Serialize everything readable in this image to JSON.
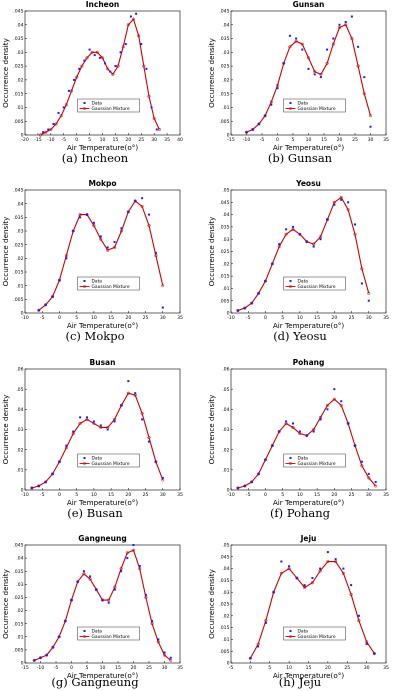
{
  "figure": {
    "colors": {
      "data": "#1a1aff",
      "mixture": "#cc0000",
      "axis": "#000000"
    },
    "xlabel": "Air Temperature(o°)",
    "ylabel": "Occurrence density",
    "legend": {
      "data": "Data",
      "mixture": "Gaussian Mixture"
    }
  },
  "chart_data": [
    {
      "type": "line",
      "title": "Incheon",
      "caption": "(a) Incheon",
      "xlabel": "Air Temperature(o°)",
      "ylabel": "Occurrence density",
      "xlim": [
        -20,
        40
      ],
      "xticks": [
        -20,
        -15,
        -10,
        -5,
        0,
        5,
        10,
        15,
        20,
        25,
        30,
        35,
        40
      ],
      "ylim": [
        0,
        0.045
      ],
      "yticks": [
        0,
        0.005,
        0.01,
        0.015,
        0.02,
        0.025,
        0.03,
        0.035,
        0.04,
        0.045
      ],
      "legend_position": "lower-center",
      "series": [
        {
          "name": "Data",
          "style": "marker",
          "x": [
            -13,
            -11,
            -9,
            -7,
            -5,
            -3,
            -1,
            1,
            3,
            5,
            7,
            9,
            11,
            13,
            15,
            17,
            19,
            21,
            23,
            25,
            27,
            29,
            31
          ],
          "y": [
            0.001,
            0.002,
            0.004,
            0.008,
            0.01,
            0.016,
            0.02,
            0.024,
            0.027,
            0.031,
            0.029,
            0.028,
            0.026,
            0.023,
            0.025,
            0.03,
            0.033,
            0.043,
            0.044,
            0.033,
            0.024,
            0.01,
            0.002
          ]
        },
        {
          "name": "Gaussian Mixture",
          "style": "line-marker",
          "x": [
            -14,
            -12,
            -10,
            -8,
            -6,
            -4,
            -2,
            0,
            2,
            4,
            6,
            8,
            10,
            12,
            14,
            16,
            18,
            20,
            22,
            24,
            26,
            28,
            30,
            32
          ],
          "y": [
            0.0,
            0.001,
            0.002,
            0.004,
            0.007,
            0.011,
            0.016,
            0.021,
            0.025,
            0.028,
            0.03,
            0.03,
            0.028,
            0.024,
            0.022,
            0.025,
            0.032,
            0.04,
            0.042,
            0.036,
            0.025,
            0.014,
            0.006,
            0.002
          ]
        }
      ]
    },
    {
      "type": "line",
      "title": "Gunsan",
      "caption": "(b) Gunsan",
      "xlabel": "Air Temperature(o°)",
      "ylabel": "Occurrence density",
      "xlim": [
        -15,
        35
      ],
      "xticks": [
        -15,
        -10,
        -5,
        0,
        5,
        10,
        15,
        20,
        25,
        30,
        35
      ],
      "ylim": [
        0,
        0.045
      ],
      "yticks": [
        0,
        0.005,
        0.01,
        0.015,
        0.02,
        0.025,
        0.03,
        0.035,
        0.04,
        0.045
      ],
      "legend_position": "lower-center",
      "series": [
        {
          "name": "Data",
          "style": "marker",
          "x": [
            -10,
            -8,
            -6,
            -4,
            -2,
            0,
            2,
            4,
            6,
            8,
            10,
            12,
            14,
            16,
            18,
            20,
            22,
            24,
            26,
            28,
            30
          ],
          "y": [
            0.001,
            0.002,
            0.004,
            0.007,
            0.011,
            0.017,
            0.026,
            0.036,
            0.035,
            0.031,
            0.024,
            0.022,
            0.021,
            0.031,
            0.035,
            0.04,
            0.041,
            0.043,
            0.032,
            0.021,
            0.003
          ]
        },
        {
          "name": "Gaussian Mixture",
          "style": "line-marker",
          "x": [
            -10,
            -8,
            -6,
            -4,
            -2,
            0,
            2,
            4,
            6,
            8,
            10,
            12,
            14,
            16,
            18,
            20,
            22,
            24,
            26,
            28,
            30
          ],
          "y": [
            0.001,
            0.002,
            0.004,
            0.007,
            0.012,
            0.018,
            0.026,
            0.032,
            0.034,
            0.033,
            0.028,
            0.023,
            0.022,
            0.026,
            0.033,
            0.039,
            0.04,
            0.035,
            0.025,
            0.015,
            0.007
          ]
        }
      ]
    },
    {
      "type": "line",
      "title": "Mokpo",
      "caption": "(c) Mokpo",
      "xlabel": "Air Temperature(o°)",
      "ylabel": "Occurrence density",
      "xlim": [
        -10,
        35
      ],
      "xticks": [
        -10,
        -5,
        0,
        5,
        10,
        15,
        20,
        25,
        30,
        35
      ],
      "ylim": [
        0,
        0.045
      ],
      "yticks": [
        0,
        0.005,
        0.01,
        0.015,
        0.02,
        0.025,
        0.03,
        0.035,
        0.04,
        0.045
      ],
      "legend_position": "lower-center",
      "series": [
        {
          "name": "Data",
          "style": "marker",
          "x": [
            -6,
            -4,
            -2,
            0,
            2,
            4,
            6,
            8,
            10,
            12,
            14,
            16,
            18,
            20,
            22,
            24,
            26,
            28,
            30
          ],
          "y": [
            0.001,
            0.003,
            0.006,
            0.012,
            0.02,
            0.03,
            0.035,
            0.036,
            0.033,
            0.028,
            0.024,
            0.026,
            0.031,
            0.037,
            0.041,
            0.042,
            0.036,
            0.022,
            0.002
          ]
        },
        {
          "name": "Gaussian Mixture",
          "style": "line-marker",
          "x": [
            -6,
            -4,
            -2,
            0,
            2,
            4,
            6,
            8,
            10,
            12,
            14,
            16,
            18,
            20,
            22,
            24,
            26,
            28,
            30
          ],
          "y": [
            0.001,
            0.003,
            0.006,
            0.012,
            0.021,
            0.03,
            0.036,
            0.036,
            0.032,
            0.027,
            0.023,
            0.024,
            0.03,
            0.037,
            0.041,
            0.039,
            0.032,
            0.021,
            0.01
          ]
        }
      ]
    },
    {
      "type": "line",
      "title": "Yeosu",
      "caption": "(d) Yeosu",
      "xlabel": "Air Temperature(o°)",
      "ylabel": "Occurrence density",
      "xlim": [
        -10,
        35
      ],
      "xticks": [
        -10,
        -5,
        0,
        5,
        10,
        15,
        20,
        25,
        30,
        35
      ],
      "ylim": [
        0,
        0.05
      ],
      "yticks": [
        0,
        0.005,
        0.01,
        0.015,
        0.02,
        0.025,
        0.03,
        0.035,
        0.04,
        0.045,
        0.05
      ],
      "legend_position": "lower-center",
      "series": [
        {
          "name": "Data",
          "style": "marker",
          "x": [
            -8,
            -6,
            -4,
            -2,
            0,
            2,
            4,
            6,
            8,
            10,
            12,
            14,
            16,
            18,
            20,
            22,
            24,
            26,
            28,
            30
          ],
          "y": [
            0.001,
            0.002,
            0.004,
            0.008,
            0.013,
            0.02,
            0.028,
            0.034,
            0.035,
            0.032,
            0.029,
            0.027,
            0.03,
            0.038,
            0.044,
            0.046,
            0.045,
            0.036,
            0.012,
            0.005
          ]
        },
        {
          "name": "Gaussian Mixture",
          "style": "line-marker",
          "x": [
            -8,
            -6,
            -4,
            -2,
            0,
            2,
            4,
            6,
            8,
            10,
            12,
            14,
            16,
            18,
            20,
            22,
            24,
            26,
            28,
            30
          ],
          "y": [
            0.001,
            0.002,
            0.004,
            0.008,
            0.013,
            0.02,
            0.027,
            0.032,
            0.034,
            0.032,
            0.029,
            0.028,
            0.031,
            0.038,
            0.045,
            0.047,
            0.042,
            0.032,
            0.018,
            0.008
          ]
        }
      ]
    },
    {
      "type": "line",
      "title": "Busan",
      "caption": "(e) Busan",
      "xlabel": "Air Temperature(o°)",
      "ylabel": "Occurrence density",
      "xlim": [
        -10,
        35
      ],
      "xticks": [
        -10,
        -5,
        0,
        5,
        10,
        15,
        20,
        25,
        30,
        35
      ],
      "ylim": [
        0,
        0.06
      ],
      "yticks": [
        0,
        0.01,
        0.02,
        0.03,
        0.04,
        0.05,
        0.06
      ],
      "legend_position": "lower-center",
      "series": [
        {
          "name": "Data",
          "style": "marker",
          "x": [
            -8,
            -6,
            -4,
            -2,
            0,
            2,
            4,
            6,
            8,
            10,
            12,
            14,
            16,
            18,
            20,
            22,
            24,
            26,
            28,
            30
          ],
          "y": [
            0.001,
            0.002,
            0.004,
            0.008,
            0.014,
            0.022,
            0.029,
            0.036,
            0.036,
            0.034,
            0.032,
            0.03,
            0.034,
            0.042,
            0.054,
            0.048,
            0.035,
            0.024,
            0.014,
            0.006
          ]
        },
        {
          "name": "Gaussian Mixture",
          "style": "line-marker",
          "x": [
            -8,
            -6,
            -4,
            -2,
            0,
            2,
            4,
            6,
            8,
            10,
            12,
            14,
            16,
            18,
            20,
            22,
            24,
            26,
            28,
            30
          ],
          "y": [
            0.001,
            0.002,
            0.004,
            0.008,
            0.014,
            0.021,
            0.028,
            0.033,
            0.035,
            0.033,
            0.031,
            0.031,
            0.035,
            0.042,
            0.048,
            0.047,
            0.038,
            0.026,
            0.014,
            0.005
          ]
        }
      ]
    },
    {
      "type": "line",
      "title": "Pohang",
      "caption": "(f) Pohang",
      "xlabel": "Air Temperature(o°)",
      "ylabel": "Occurrence density",
      "xlim": [
        -10,
        35
      ],
      "xticks": [
        -10,
        -5,
        0,
        5,
        10,
        15,
        20,
        25,
        30,
        35
      ],
      "ylim": [
        0,
        0.06
      ],
      "yticks": [
        0,
        0.01,
        0.02,
        0.03,
        0.04,
        0.05,
        0.06
      ],
      "legend_position": "lower-center",
      "series": [
        {
          "name": "Data",
          "style": "marker",
          "x": [
            -8,
            -6,
            -4,
            -2,
            0,
            2,
            4,
            6,
            8,
            10,
            12,
            14,
            16,
            18,
            20,
            22,
            24,
            26,
            28,
            30,
            32
          ],
          "y": [
            0.001,
            0.002,
            0.004,
            0.008,
            0.015,
            0.022,
            0.029,
            0.034,
            0.033,
            0.029,
            0.027,
            0.029,
            0.035,
            0.04,
            0.05,
            0.044,
            0.033,
            0.022,
            0.014,
            0.008,
            0.004
          ]
        },
        {
          "name": "Gaussian Mixture",
          "style": "line-marker",
          "x": [
            -8,
            -6,
            -4,
            -2,
            0,
            2,
            4,
            6,
            8,
            10,
            12,
            14,
            16,
            18,
            20,
            22,
            24,
            26,
            28,
            30,
            32
          ],
          "y": [
            0.001,
            0.002,
            0.004,
            0.008,
            0.015,
            0.022,
            0.029,
            0.033,
            0.031,
            0.028,
            0.027,
            0.03,
            0.036,
            0.042,
            0.045,
            0.042,
            0.033,
            0.022,
            0.012,
            0.006,
            0.002
          ]
        }
      ]
    },
    {
      "type": "line",
      "title": "Gangneung",
      "caption": "(g) Gangneung",
      "xlabel": "Air Temperature(o°)",
      "ylabel": "Occurrence density",
      "xlim": [
        -15,
        35
      ],
      "xticks": [
        -15,
        -10,
        -5,
        0,
        5,
        10,
        15,
        20,
        25,
        30,
        35
      ],
      "ylim": [
        0,
        0.045
      ],
      "yticks": [
        0,
        0.005,
        0.01,
        0.015,
        0.02,
        0.025,
        0.03,
        0.035,
        0.04,
        0.045
      ],
      "legend_position": "lower-center",
      "series": [
        {
          "name": "Data",
          "style": "marker",
          "x": [
            -12,
            -10,
            -8,
            -6,
            -4,
            -2,
            0,
            2,
            4,
            6,
            8,
            10,
            12,
            14,
            16,
            18,
            20,
            22,
            24,
            26,
            28,
            30,
            32
          ],
          "y": [
            0.001,
            0.002,
            0.003,
            0.006,
            0.01,
            0.016,
            0.024,
            0.031,
            0.035,
            0.033,
            0.028,
            0.024,
            0.023,
            0.028,
            0.035,
            0.04,
            0.045,
            0.037,
            0.026,
            0.016,
            0.009,
            0.004,
            0.002
          ]
        },
        {
          "name": "Gaussian Mixture",
          "style": "line-marker",
          "x": [
            -12,
            -10,
            -8,
            -6,
            -4,
            -2,
            0,
            2,
            4,
            6,
            8,
            10,
            12,
            14,
            16,
            18,
            20,
            22,
            24,
            26,
            28,
            30,
            32
          ],
          "y": [
            0.001,
            0.002,
            0.003,
            0.006,
            0.01,
            0.016,
            0.024,
            0.031,
            0.034,
            0.032,
            0.028,
            0.024,
            0.024,
            0.029,
            0.036,
            0.042,
            0.043,
            0.036,
            0.025,
            0.015,
            0.008,
            0.003,
            0.001
          ]
        }
      ]
    },
    {
      "type": "line",
      "title": "Jeju",
      "caption": "(h) Jeju",
      "xlabel": "Air Temperature(o°)",
      "ylabel": "Occurrence density",
      "xlim": [
        -5,
        35
      ],
      "xticks": [
        -5,
        0,
        5,
        10,
        15,
        20,
        25,
        30,
        35
      ],
      "ylim": [
        0,
        0.05
      ],
      "yticks": [
        0,
        0.005,
        0.01,
        0.015,
        0.02,
        0.025,
        0.03,
        0.035,
        0.04,
        0.045,
        0.05
      ],
      "legend_position": "lower-center",
      "series": [
        {
          "name": "Data",
          "style": "marker",
          "x": [
            0,
            2,
            4,
            6,
            8,
            10,
            12,
            14,
            16,
            18,
            20,
            22,
            24,
            26,
            28,
            30,
            32
          ],
          "y": [
            0.002,
            0.007,
            0.017,
            0.03,
            0.043,
            0.041,
            0.036,
            0.033,
            0.036,
            0.04,
            0.047,
            0.044,
            0.04,
            0.033,
            0.02,
            0.008,
            0.004
          ]
        },
        {
          "name": "Gaussian Mixture",
          "style": "line-marker",
          "x": [
            0,
            2,
            4,
            6,
            8,
            10,
            12,
            14,
            16,
            18,
            20,
            22,
            24,
            26,
            28,
            30,
            32
          ],
          "y": [
            0.002,
            0.008,
            0.018,
            0.03,
            0.038,
            0.04,
            0.036,
            0.032,
            0.034,
            0.039,
            0.043,
            0.043,
            0.038,
            0.029,
            0.018,
            0.009,
            0.004
          ]
        }
      ]
    }
  ]
}
